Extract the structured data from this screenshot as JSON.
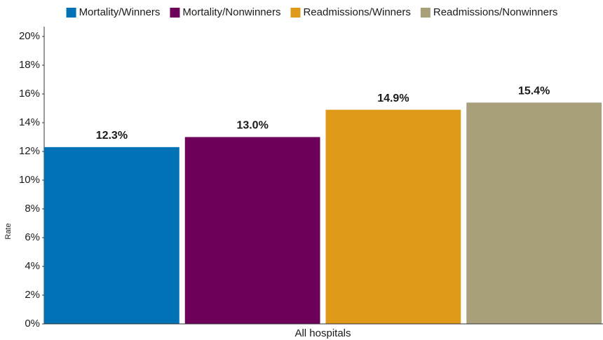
{
  "chart_data": {
    "type": "bar",
    "categories": [
      "All hospitals"
    ],
    "y_label": "Rate",
    "series": [
      {
        "name": "Mortality/Winners",
        "color": "#0072b5",
        "values": [
          12.3
        ],
        "value_labels": [
          "12.3%"
        ]
      },
      {
        "name": "Mortality/Nonwinners",
        "color": "#6d0059",
        "values": [
          13.0
        ],
        "value_labels": [
          "13.0%"
        ]
      },
      {
        "name": "Readmissions/Winners",
        "color": "#e09a1a",
        "values": [
          14.9
        ],
        "value_labels": [
          "14.9%"
        ]
      },
      {
        "name": "Readmissions/Nonwinners",
        "color": "#a89f7b",
        "values": [
          15.4
        ],
        "value_labels": [
          "15.4%"
        ]
      }
    ],
    "ylim": [
      0,
      20
    ],
    "yticks": [
      {
        "value": 0,
        "label": "0%"
      },
      {
        "value": 2,
        "label": "2%"
      },
      {
        "value": 4,
        "label": "4%"
      },
      {
        "value": 6,
        "label": "6%"
      },
      {
        "value": 8,
        "label": "8%"
      },
      {
        "value": 10,
        "label": "10%"
      },
      {
        "value": 12,
        "label": "12%"
      },
      {
        "value": 14,
        "label": "14%"
      },
      {
        "value": 16,
        "label": "16%"
      },
      {
        "value": 18,
        "label": "18%"
      },
      {
        "value": 20,
        "label": "20%"
      }
    ],
    "legend": "top",
    "grid": false
  }
}
